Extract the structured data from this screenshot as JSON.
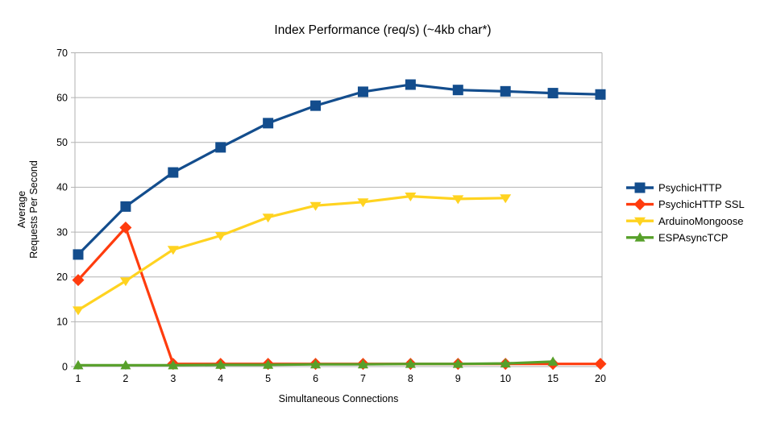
{
  "chart_data": {
    "type": "line",
    "title": "Index Performance (req/s) (~4kb char*)",
    "xlabel": "Simultaneous Connections",
    "ylabel_lines": [
      "Average",
      "Requests Per Second"
    ],
    "categories": [
      "1",
      "2",
      "3",
      "4",
      "5",
      "6",
      "7",
      "8",
      "9",
      "10",
      "15",
      "20"
    ],
    "ylim": [
      0,
      70
    ],
    "ytick_step": 10,
    "grid": true,
    "legend_position": "right",
    "colors": {
      "grid": "#b2b2b2",
      "tick": "#b2b2b2",
      "text": "#000000",
      "background": "#ffffff"
    },
    "series": [
      {
        "name": "PsychicHTTP",
        "color": "#134d8d",
        "marker": "square",
        "values": [
          25.0,
          35.7,
          43.3,
          48.9,
          54.3,
          58.2,
          61.3,
          62.9,
          61.7,
          61.4,
          61.0,
          60.7
        ]
      },
      {
        "name": "PsychicHTTP SSL",
        "color": "#ff3c0e",
        "marker": "diamond",
        "values": [
          19.3,
          31.0,
          0.6,
          0.6,
          0.6,
          0.6,
          0.6,
          0.6,
          0.6,
          0.6,
          0.6,
          0.6
        ]
      },
      {
        "name": "ArduinoMongoose",
        "color": "#ffd320",
        "marker": "triangle-down",
        "values": [
          12.6,
          19.1,
          26.1,
          29.2,
          33.3,
          35.9,
          36.7,
          38.0,
          37.4,
          37.6,
          null,
          null
        ]
      },
      {
        "name": "ESPAsyncTCP",
        "color": "#57a02a",
        "marker": "triangle-up",
        "values": [
          0.3,
          0.3,
          0.3,
          0.4,
          0.4,
          0.5,
          0.5,
          0.6,
          0.6,
          0.7,
          1.1,
          null
        ]
      }
    ]
  }
}
